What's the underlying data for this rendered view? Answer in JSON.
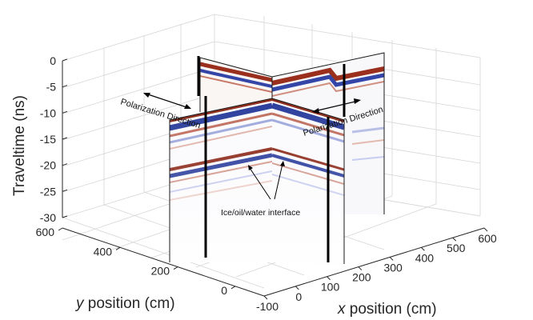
{
  "chart_data": {
    "type": "3d-radargram",
    "zlabel": "Traveltime (ns)",
    "ylabel_var": "y",
    "ylabel_rest": " position (cm)",
    "xlabel_var": "x",
    "xlabel_rest": " position (cm)",
    "zlim": [
      -30,
      0
    ],
    "zticks": [
      "0",
      "-5",
      "-10",
      "-15",
      "-20",
      "-25",
      "-30"
    ],
    "ylim": [
      -100,
      600
    ],
    "yticks": [
      "600",
      "400",
      "200",
      "0"
    ],
    "xlim": [
      -100,
      600
    ],
    "xticks": [
      "-100",
      "0",
      "100",
      "200",
      "300",
      "400",
      "500",
      "600"
    ],
    "grid": true,
    "colors": {
      "positive": "#2a3d9c",
      "negative": "#8c2a1a"
    },
    "annotations": {
      "polarization_left": "Polarization Direction",
      "polarization_right": "Polarization Direction",
      "interface": "Ice/oil/water interface"
    }
  }
}
